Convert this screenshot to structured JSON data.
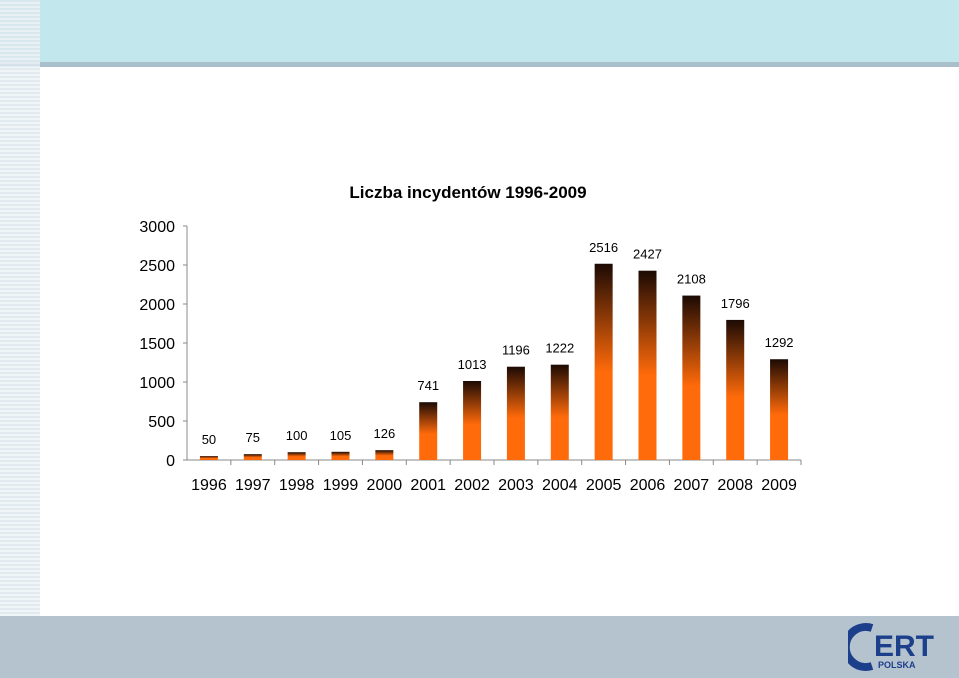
{
  "colors": {
    "top_band": "#c2e8ee",
    "bottom_band": "#b5c3cf",
    "bar_top": "#1c0a04",
    "bar_bottom": "#ff6a0a",
    "logo": "#1c3f8c"
  },
  "logo": {
    "big_text": "ERT",
    "small_text": "POLSKA"
  },
  "chart_data": {
    "type": "bar",
    "title": "Liczba incydentów 1996-2009",
    "categories": [
      "1996",
      "1997",
      "1998",
      "1999",
      "2000",
      "2001",
      "2002",
      "2003",
      "2004",
      "2005",
      "2006",
      "2007",
      "2008",
      "2009"
    ],
    "values": [
      50,
      75,
      100,
      105,
      126,
      741,
      1013,
      1196,
      1222,
      2516,
      2427,
      2108,
      1796,
      1292
    ],
    "ylim": [
      0,
      3000
    ],
    "yticks": [
      0,
      500,
      1000,
      1500,
      2000,
      2500,
      3000
    ],
    "grid": false,
    "legend": "none"
  }
}
